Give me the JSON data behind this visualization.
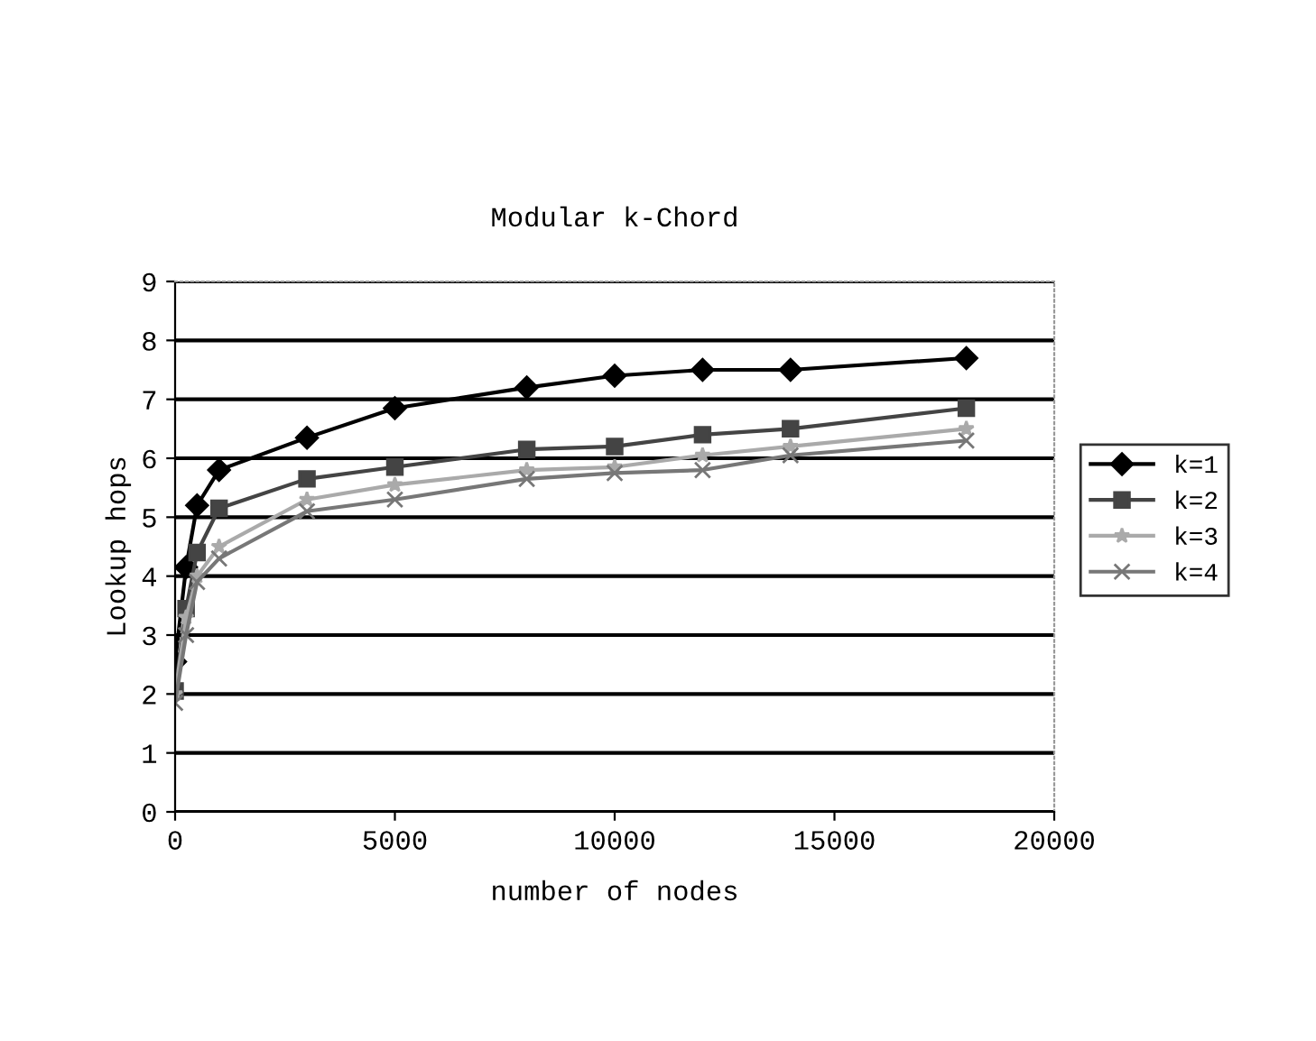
{
  "chart_data": {
    "type": "line",
    "title": "Modular k-Chord",
    "xlabel": "number of nodes",
    "ylabel": "Lookup hops",
    "x": [
      0,
      250,
      500,
      1000,
      3000,
      5000,
      8000,
      10000,
      12000,
      14000,
      18000
    ],
    "series": [
      {
        "name": "k=1",
        "color": "#000000",
        "marker": "diamond",
        "values": [
          2.55,
          4.15,
          5.2,
          5.8,
          6.35,
          6.85,
          7.2,
          7.4,
          7.5,
          7.5,
          7.7
        ]
      },
      {
        "name": "k=2",
        "color": "#444444",
        "marker": "square",
        "values": [
          2.05,
          3.45,
          4.4,
          5.15,
          5.65,
          5.85,
          6.15,
          6.2,
          6.4,
          6.5,
          6.85
        ]
      },
      {
        "name": "k=3",
        "color": "#aaaaaa",
        "marker": "star",
        "values": [
          2.0,
          3.3,
          4.0,
          4.5,
          5.3,
          5.55,
          5.8,
          5.85,
          6.05,
          6.2,
          6.5
        ]
      },
      {
        "name": "k=4",
        "color": "#777777",
        "marker": "cross",
        "values": [
          1.85,
          3.0,
          3.9,
          4.3,
          5.1,
          5.3,
          5.65,
          5.75,
          5.8,
          6.05,
          6.3
        ]
      }
    ],
    "xlim": [
      0,
      20000
    ],
    "xticks": [
      0,
      5000,
      10000,
      15000,
      20000
    ],
    "ylim": [
      0,
      9
    ],
    "yticks": [
      0,
      1,
      2,
      3,
      4,
      5,
      6,
      7,
      8,
      9
    ],
    "grid": "y",
    "legend": "right"
  }
}
